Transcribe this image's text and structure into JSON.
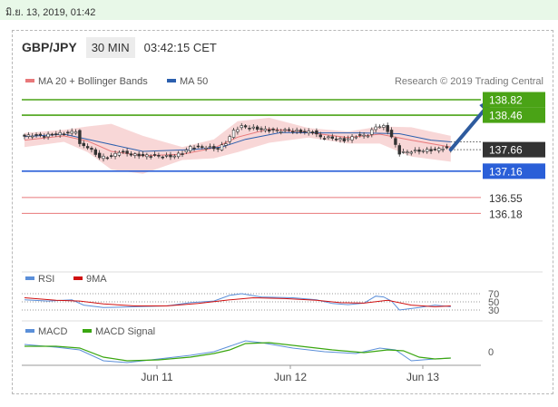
{
  "date_time": "มิ.ย. 13, 2019, 01:42",
  "header": {
    "pair": "GBP/JPY",
    "timeframe": "30 MIN",
    "time": "03:42:15 CET"
  },
  "colors": {
    "green": "#4aa316",
    "blue": "#2a5fd8",
    "red": "#e8787a",
    "price": "#333333",
    "band": "#f6c9c9",
    "ma50": "#2b5fae",
    "rsi": "#5b8fd9",
    "rsi9": "#d01010",
    "macd": "#5b8fd9",
    "signal": "#3aa610",
    "arrow": "#2e5b9e"
  },
  "chart_data": [
    {
      "type": "candlestick",
      "legend": [
        {
          "name": "MA 20 + Bollinger Bands",
          "color": "#e8787a"
        },
        {
          "name": "MA 50",
          "color": "#2b5fae"
        }
      ],
      "credit": "Research © 2019 Trading Central",
      "x_ticks": [
        "Jun 11",
        "Jun 12",
        "Jun 13"
      ],
      "ylim": [
        135.9,
        139.0
      ],
      "levels": [
        {
          "value": 138.82,
          "label": "138.82",
          "color": "#4aa316",
          "style": "line-box"
        },
        {
          "value": 138.46,
          "label": "138.46",
          "color": "#4aa316",
          "style": "line-box"
        },
        {
          "value": 137.66,
          "label": "137.66",
          "color": "#333333",
          "style": "price-box"
        },
        {
          "value": 137.16,
          "label": "137.16",
          "color": "#2a5fd8",
          "style": "line-box"
        },
        {
          "value": 136.55,
          "label": "136.55",
          "color": "#e8787a",
          "style": "line-text"
        },
        {
          "value": 136.18,
          "label": "136.18",
          "color": "#e8787a",
          "style": "line-text"
        }
      ],
      "close_path": [
        [
          0,
          137.97
        ],
        [
          2,
          138.0
        ],
        [
          5,
          137.98
        ],
        [
          8,
          138.03
        ],
        [
          11,
          138.04
        ],
        [
          13,
          138.1
        ],
        [
          14,
          137.78
        ],
        [
          16,
          137.72
        ],
        [
          19,
          137.48
        ],
        [
          22,
          137.5
        ],
        [
          24,
          137.62
        ],
        [
          27,
          137.55
        ],
        [
          30,
          137.52
        ],
        [
          34,
          137.52
        ],
        [
          37,
          137.5
        ],
        [
          40,
          137.58
        ],
        [
          42,
          137.72
        ],
        [
          46,
          137.72
        ],
        [
          49,
          137.68
        ],
        [
          51,
          137.82
        ],
        [
          53,
          138.1
        ],
        [
          55,
          138.2
        ],
        [
          58,
          138.16
        ],
        [
          61,
          138.12
        ],
        [
          64,
          138.1
        ],
        [
          67,
          138.11
        ],
        [
          70,
          138.08
        ],
        [
          73,
          138.07
        ],
        [
          75,
          137.95
        ],
        [
          78,
          137.93
        ],
        [
          81,
          137.88
        ],
        [
          84,
          137.98
        ],
        [
          87,
          138.0
        ],
        [
          89,
          138.2
        ],
        [
          91,
          138.2
        ],
        [
          92,
          138.1
        ],
        [
          93,
          137.95
        ],
        [
          95,
          137.58
        ],
        [
          98,
          137.62
        ],
        [
          101,
          137.64
        ],
        [
          104,
          137.66
        ],
        [
          106,
          137.7
        ],
        [
          108,
          137.66
        ]
      ],
      "ma50": [
        [
          0,
          137.96
        ],
        [
          10,
          138.02
        ],
        [
          20,
          137.82
        ],
        [
          30,
          137.62
        ],
        [
          42,
          137.66
        ],
        [
          50,
          137.72
        ],
        [
          56,
          137.9
        ],
        [
          65,
          138.06
        ],
        [
          75,
          138.05
        ],
        [
          85,
          138.05
        ],
        [
          95,
          138.03
        ],
        [
          103,
          137.88
        ],
        [
          108,
          137.84
        ]
      ],
      "ma20": [
        [
          0,
          137.88
        ],
        [
          10,
          137.98
        ],
        [
          16,
          137.86
        ],
        [
          22,
          137.62
        ],
        [
          30,
          137.52
        ],
        [
          40,
          137.55
        ],
        [
          48,
          137.7
        ],
        [
          54,
          137.95
        ],
        [
          62,
          138.14
        ],
        [
          72,
          138.06
        ],
        [
          82,
          137.94
        ],
        [
          90,
          138.02
        ],
        [
          98,
          137.88
        ],
        [
          108,
          137.72
        ]
      ],
      "bb_upper": [
        [
          0,
          138.05
        ],
        [
          10,
          138.12
        ],
        [
          16,
          138.2
        ],
        [
          22,
          138.26
        ],
        [
          30,
          137.98
        ],
        [
          40,
          137.72
        ],
        [
          48,
          137.9
        ],
        [
          54,
          138.32
        ],
        [
          62,
          138.4
        ],
        [
          72,
          138.16
        ],
        [
          82,
          138.08
        ],
        [
          90,
          138.2
        ],
        [
          98,
          138.18
        ],
        [
          108,
          137.98
        ]
      ],
      "bb_lower": [
        [
          0,
          137.72
        ],
        [
          10,
          137.84
        ],
        [
          16,
          137.6
        ],
        [
          22,
          137.2
        ],
        [
          30,
          137.1
        ],
        [
          40,
          137.42
        ],
        [
          48,
          137.46
        ],
        [
          54,
          137.6
        ],
        [
          62,
          137.82
        ],
        [
          72,
          137.94
        ],
        [
          82,
          137.8
        ],
        [
          90,
          137.8
        ],
        [
          98,
          137.5
        ],
        [
          108,
          137.38
        ]
      ],
      "forecast": {
        "from": [
          108,
          137.66
        ],
        "to": [
          118,
          138.82
        ]
      }
    },
    {
      "type": "line",
      "legend": [
        {
          "name": "RSI",
          "color": "#5b8fd9"
        },
        {
          "name": "9MA",
          "color": "#d01010"
        }
      ],
      "ylim": [
        25,
        85
      ],
      "y_ticks": [
        70,
        50,
        30
      ],
      "series": [
        {
          "name": "RSI",
          "values": [
            [
              0,
              55
            ],
            [
              6,
              52
            ],
            [
              12,
              55
            ],
            [
              15,
              42
            ],
            [
              20,
              36
            ],
            [
              28,
              38
            ],
            [
              36,
              40
            ],
            [
              42,
              48
            ],
            [
              48,
              52
            ],
            [
              52,
              66
            ],
            [
              55,
              70
            ],
            [
              60,
              62
            ],
            [
              68,
              60
            ],
            [
              74,
              55
            ],
            [
              78,
              46
            ],
            [
              82,
              43
            ],
            [
              86,
              47
            ],
            [
              89,
              64
            ],
            [
              91,
              62
            ],
            [
              93,
              52
            ],
            [
              95,
              30
            ],
            [
              100,
              36
            ],
            [
              104,
              42
            ],
            [
              108,
              38
            ]
          ]
        },
        {
          "name": "9MA",
          "values": [
            [
              0,
              60
            ],
            [
              8,
              54
            ],
            [
              14,
              52
            ],
            [
              20,
              45
            ],
            [
              28,
              40
            ],
            [
              36,
              40
            ],
            [
              44,
              46
            ],
            [
              52,
              55
            ],
            [
              58,
              60
            ],
            [
              66,
              58
            ],
            [
              74,
              54
            ],
            [
              80,
              48
            ],
            [
              86,
              47
            ],
            [
              92,
              54
            ],
            [
              98,
              42
            ],
            [
              104,
              38
            ],
            [
              108,
              40
            ]
          ]
        }
      ]
    },
    {
      "type": "line",
      "legend": [
        {
          "name": "MACD",
          "color": "#5b8fd9"
        },
        {
          "name": "MACD Signal",
          "color": "#3aa610"
        }
      ],
      "ylim": [
        -0.12,
        0.12
      ],
      "y_ticks": [
        0
      ],
      "series": [
        {
          "name": "MACD",
          "values": [
            [
              0,
              0.04
            ],
            [
              8,
              0.025
            ],
            [
              14,
              0.01
            ],
            [
              20,
              -0.05
            ],
            [
              26,
              -0.06
            ],
            [
              34,
              -0.04
            ],
            [
              42,
              -0.02
            ],
            [
              48,
              0.0
            ],
            [
              52,
              0.03
            ],
            [
              56,
              0.06
            ],
            [
              60,
              0.05
            ],
            [
              68,
              0.02
            ],
            [
              76,
              0.0
            ],
            [
              84,
              -0.01
            ],
            [
              90,
              0.02
            ],
            [
              94,
              0.01
            ],
            [
              98,
              -0.05
            ],
            [
              104,
              -0.04
            ],
            [
              108,
              -0.035
            ]
          ]
        },
        {
          "name": "MACD Signal",
          "values": [
            [
              0,
              0.03
            ],
            [
              8,
              0.03
            ],
            [
              14,
              0.02
            ],
            [
              20,
              -0.03
            ],
            [
              26,
              -0.05
            ],
            [
              34,
              -0.045
            ],
            [
              42,
              -0.03
            ],
            [
              48,
              -0.01
            ],
            [
              52,
              0.01
            ],
            [
              56,
              0.045
            ],
            [
              62,
              0.05
            ],
            [
              70,
              0.03
            ],
            [
              78,
              0.01
            ],
            [
              86,
              -0.005
            ],
            [
              92,
              0.01
            ],
            [
              96,
              0.005
            ],
            [
              100,
              -0.03
            ],
            [
              104,
              -0.04
            ],
            [
              108,
              -0.035
            ]
          ]
        }
      ]
    }
  ]
}
